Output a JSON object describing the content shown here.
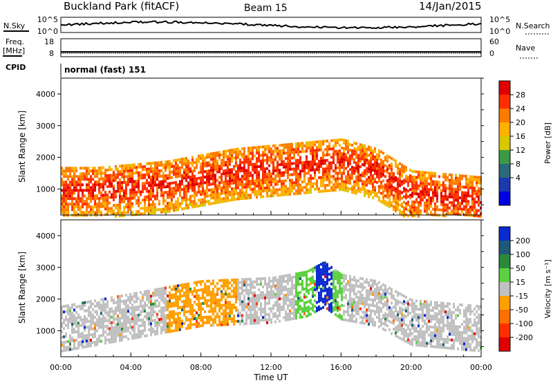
{
  "header": {
    "radar": "Buckland Park (fitACF)",
    "beam": "Beam 15",
    "date": "14/Jan/2015"
  },
  "noise_panel": {
    "left_label": "N.Sky",
    "right_label": "N.Search",
    "left_ticks": [
      "10^5",
      "10^0"
    ],
    "right_ticks": [
      "10^5",
      "10^0"
    ]
  },
  "freq_panel": {
    "left_label_line1": "Freq.",
    "left_label_line2": "[MHz]",
    "left_ticks": [
      "18",
      "8"
    ],
    "right_label": "Nave",
    "right_ticks": [
      "60",
      "0"
    ]
  },
  "cpid_panel": {
    "label": "CPID",
    "mode": "normal (fast) 151"
  },
  "axes": {
    "ylabel": "Slant Range [km]",
    "xlabel": "Time UT",
    "xticks": [
      "00:00",
      "04:00",
      "08:00",
      "12:00",
      "16:00",
      "20:00",
      "00:00"
    ],
    "yticks": [
      "1000",
      "2000",
      "3000",
      "4000"
    ]
  },
  "power_scale": {
    "label": "Power [dB]",
    "ticks": [
      "28",
      "24",
      "20",
      "16",
      "12",
      "8",
      "4"
    ],
    "colors": [
      "#e00000",
      "#ff3000",
      "#ff7a00",
      "#ffb000",
      "#d8c800",
      "#3c9a45",
      "#2a6a7a",
      "#1a3ab0",
      "#0000e0"
    ]
  },
  "velocity_scale": {
    "label": "Velocity [m s⁻¹]",
    "ticks": [
      "200",
      "100",
      "50",
      "15",
      "-15",
      "-50",
      "-100",
      "-200"
    ],
    "colors": [
      "#0a2ad0",
      "#1e5a78",
      "#2a8a3a",
      "#5cd040",
      "#c0c0c0",
      "#ffa000",
      "#ff7000",
      "#ff3000",
      "#e00000"
    ]
  },
  "chart_data": [
    {
      "type": "heatmap",
      "title": "Power",
      "xlabel": "Time UT",
      "ylabel": "Slant Range [km]",
      "xlim": [
        "00:00",
        "24:00"
      ],
      "ylim": [
        180,
        4500
      ],
      "colorbar": {
        "label": "Power [dB]",
        "range": [
          0,
          32
        ]
      },
      "series": [
        {
          "time": [
            0,
            2,
            4,
            6,
            8,
            10,
            12,
            14,
            16,
            18,
            20,
            22,
            24
          ],
          "range_km": [
            1000,
            1000,
            1100,
            1200,
            1400,
            1600,
            1700,
            1800,
            1900,
            1600,
            900,
            800,
            700
          ],
          "power_db": [
            28,
            26,
            24,
            22,
            24,
            26,
            28,
            26,
            24,
            22,
            26,
            28,
            28
          ]
        }
      ]
    },
    {
      "type": "heatmap",
      "title": "Velocity",
      "xlabel": "Time UT",
      "ylabel": "Slant Range [km]",
      "xlim": [
        "00:00",
        "24:00"
      ],
      "ylim": [
        180,
        4500
      ],
      "colorbar": {
        "label": "Velocity [m s⁻¹]",
        "range": [
          -250,
          250
        ]
      },
      "series": [
        {
          "time": [
            0,
            4,
            8,
            12,
            14,
            15,
            16,
            18,
            20,
            24
          ],
          "range_km": [
            1200,
            1600,
            2000,
            2100,
            2300,
            2600,
            2200,
            2000,
            1400,
            1200
          ],
          "velocity_ms": [
            0,
            0,
            -40,
            0,
            60,
            180,
            40,
            0,
            0,
            0
          ]
        }
      ]
    }
  ]
}
